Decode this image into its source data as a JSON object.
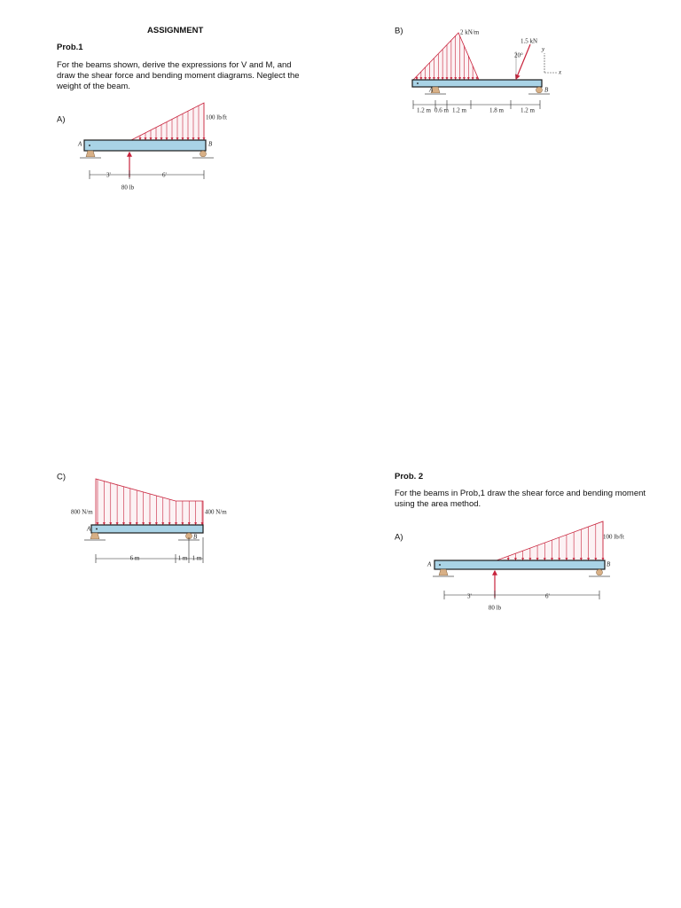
{
  "header": {
    "title": "ASSIGNMENT"
  },
  "prob1": {
    "title": "Prob.1",
    "text": "For the beams shown, derive the expressions for V and M, and draw the shear force and bending moment diagrams. Neglect the weight of the beam.",
    "figures": [
      {
        "label": "A)",
        "load": "100 lb/ft",
        "support_a": "A",
        "support_b": "B",
        "dims": [
          "3'",
          "6'"
        ],
        "force": "80 lb"
      },
      {
        "label": "B)",
        "load": "2 kN/m",
        "force": "1.5 kN",
        "angle": "20°",
        "axis_y": "y",
        "axis_x": "x",
        "support_a": "A",
        "support_b": "B",
        "dims": [
          "1.2 m",
          "0.6 m",
          "1.2 m",
          "1.8 m",
          "1.2 m"
        ]
      },
      {
        "label": "C)",
        "load_left": "800 N/m",
        "load_right": "400 N/m",
        "support_a": "A",
        "support_b": "B",
        "dims": [
          "6 m",
          "1 m",
          "1 m"
        ]
      }
    ]
  },
  "prob2": {
    "title": "Prob. 2",
    "text": "For the beams in Prob,1 draw the shear force and bending moment using the area method.",
    "figures": [
      {
        "label": "A)",
        "load": "100 lb/ft",
        "support_a": "A",
        "support_b": "B",
        "dims": [
          "3'",
          "6'"
        ],
        "force": "80 lb"
      }
    ]
  }
}
